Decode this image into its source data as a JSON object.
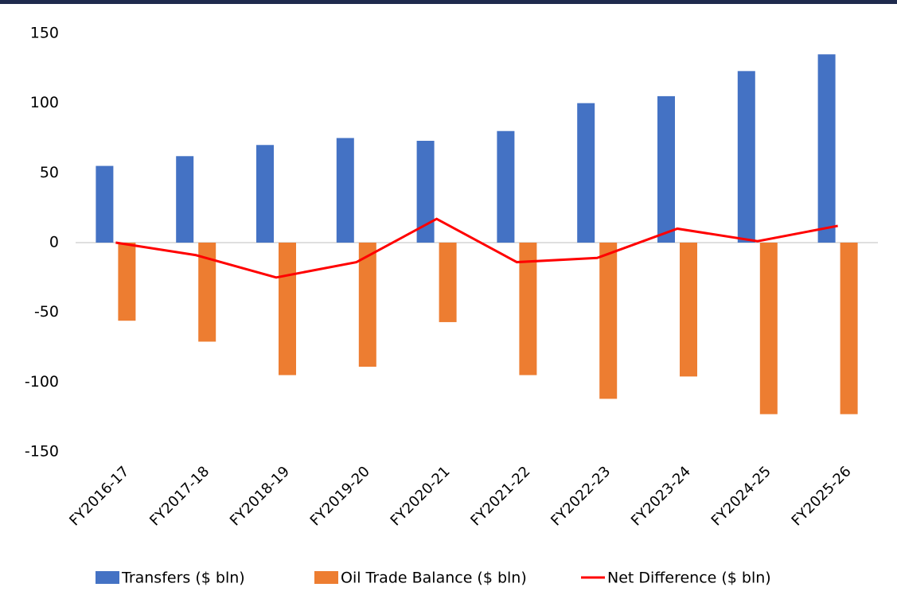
{
  "chart_data": {
    "type": "bar_line",
    "categories": [
      "FY2016-17",
      "FY2017-18",
      "FY2018-19",
      "FY2019-20",
      "FY2020-21",
      "FY2021-22",
      "FY2022-23",
      "FY2023-24",
      "FY2024-25",
      "FY2025-26"
    ],
    "series": [
      {
        "name": "Transfers ($ bln)",
        "color": "#4472c4",
        "type": "bar",
        "values": [
          55,
          62,
          70,
          75,
          73,
          80,
          100,
          105,
          123,
          135
        ]
      },
      {
        "name": "Oil Trade Balance ($ bln)",
        "color": "#ed7d31",
        "type": "bar",
        "values": [
          -56,
          -71,
          -95,
          -89,
          -57,
          -95,
          -112,
          -96,
          -123,
          -123
        ]
      },
      {
        "name": "Net Difference ($ bln)",
        "color": "#ff0000",
        "type": "line",
        "values": [
          0,
          -9,
          -25,
          -14,
          17,
          -14,
          -11,
          10,
          1,
          12
        ]
      }
    ],
    "ylim": [
      -150,
      150
    ],
    "yticks": [
      -150,
      -100,
      -50,
      0,
      50,
      100,
      150
    ],
    "grid": false,
    "legend": "bottom"
  }
}
